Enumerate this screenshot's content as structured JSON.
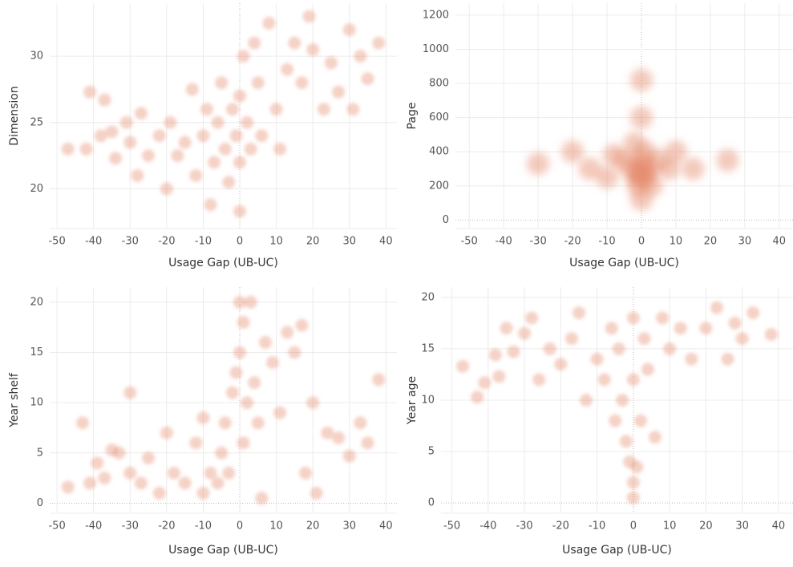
{
  "chart_data": [
    {
      "type": "scatter",
      "x_label": "Usage Gap (UB-UC)",
      "y_label": "Dimension",
      "color": "#e58a6a",
      "xlim": [
        -52,
        43
      ],
      "ylim": [
        17,
        34
      ],
      "xticks": [
        -50,
        -40,
        -30,
        -20,
        -10,
        0,
        10,
        20,
        30,
        40
      ],
      "yticks": [
        20,
        25,
        30
      ],
      "x": [
        -47,
        -42,
        -41,
        -38,
        -37,
        -35,
        -34,
        -31,
        -30,
        -28,
        -27,
        -25,
        -22,
        -20,
        -19,
        -17,
        -15,
        -13,
        -12,
        -10,
        -9,
        -8,
        -7,
        -6,
        -5,
        -4,
        -3,
        -2,
        -1,
        0,
        0,
        0,
        1,
        2,
        3,
        4,
        5,
        6,
        8,
        10,
        11,
        13,
        15,
        17,
        19,
        20,
        23,
        25,
        27,
        30,
        31,
        33,
        35,
        38
      ],
      "y": [
        23,
        23,
        27.3,
        24,
        26.7,
        24.3,
        22.3,
        25,
        23.5,
        21,
        25.7,
        22.5,
        24,
        20,
        25,
        22.5,
        23.5,
        27.5,
        21,
        24,
        26,
        18.8,
        22,
        25,
        28,
        23,
        20.5,
        26,
        24,
        18.3,
        22,
        27,
        30,
        25,
        23,
        31,
        28,
        24,
        32.5,
        26,
        23,
        29,
        31,
        28,
        33,
        30.5,
        26,
        29.5,
        27.3,
        32,
        26,
        30,
        28.3,
        31
      ]
    },
    {
      "type": "scatter",
      "x_label": "Usage Gap (UB-UC)",
      "y_label": "Page",
      "color": "#e58a6a",
      "xlim": [
        -54,
        44
      ],
      "ylim": [
        -50,
        1270
      ],
      "xticks": [
        -50,
        -40,
        -30,
        -20,
        -10,
        0,
        10,
        20,
        30,
        40
      ],
      "yticks": [
        0,
        200,
        400,
        600,
        800,
        1000,
        1200
      ],
      "x": [
        -30,
        -20,
        -15,
        -10,
        -8,
        -5,
        -3,
        -2,
        -1,
        -1,
        0,
        0,
        0,
        0,
        0,
        0,
        1,
        1,
        2,
        3,
        5,
        8,
        10,
        15,
        25
      ],
      "y": [
        330,
        400,
        300,
        250,
        380,
        350,
        300,
        450,
        250,
        200,
        300,
        280,
        350,
        600,
        820,
        120,
        250,
        400,
        300,
        200,
        350,
        300,
        400,
        300,
        350
      ]
    },
    {
      "type": "scatter",
      "x_label": "Usage Gap (UB-UC)",
      "y_label": "Year shelf",
      "color": "#e58a6a",
      "xlim": [
        -52,
        43
      ],
      "ylim": [
        -1,
        21.5
      ],
      "xticks": [
        -50,
        -40,
        -30,
        -20,
        -10,
        0,
        10,
        20,
        30,
        40
      ],
      "yticks": [
        0,
        5,
        10,
        15,
        20
      ],
      "x": [
        -47,
        -43,
        -41,
        -39,
        -37,
        -35,
        -33,
        -30,
        -30,
        -27,
        -25,
        -22,
        -20,
        -18,
        -15,
        -12,
        -10,
        -10,
        -8,
        -6,
        -5,
        -4,
        -3,
        -2,
        -1,
        0,
        0,
        1,
        1,
        2,
        3,
        4,
        5,
        6,
        7,
        9,
        11,
        13,
        15,
        17,
        18,
        20,
        21,
        24,
        27,
        30,
        33,
        35,
        38
      ],
      "y": [
        1.6,
        8,
        2,
        4,
        2.5,
        5.3,
        5,
        11,
        3,
        2,
        4.5,
        1,
        7,
        3,
        2,
        6,
        8.5,
        1,
        3,
        2,
        5,
        8,
        3,
        11,
        13,
        15,
        20,
        18,
        6,
        10,
        20,
        12,
        8,
        0.5,
        16,
        14,
        9,
        17,
        15,
        17.7,
        3,
        10,
        1,
        7,
        6.5,
        4.7,
        8,
        6,
        12.3
      ]
    },
    {
      "type": "scatter",
      "x_label": "Usage Gap (UB-UC)",
      "y_label": "Year age",
      "color": "#e58a6a",
      "xlim": [
        -53,
        44
      ],
      "ylim": [
        -1,
        21
      ],
      "xticks": [
        -50,
        -40,
        -30,
        -20,
        -10,
        0,
        10,
        20,
        30,
        40
      ],
      "yticks": [
        0,
        5,
        10,
        15,
        20
      ],
      "x": [
        -47,
        -43,
        -41,
        -38,
        -37,
        -35,
        -33,
        -30,
        -28,
        -26,
        -23,
        -20,
        -17,
        -15,
        -13,
        -10,
        -8,
        -6,
        -5,
        -4,
        -3,
        -2,
        -1,
        0,
        0,
        0,
        0,
        1,
        2,
        3,
        4,
        6,
        8,
        10,
        13,
        16,
        20,
        23,
        26,
        28,
        30,
        33,
        38
      ],
      "y": [
        13.3,
        10.3,
        11.7,
        14.4,
        12.3,
        17,
        14.7,
        16.5,
        18,
        12,
        15,
        13.5,
        16,
        18.5,
        10,
        14,
        12,
        17,
        8,
        15,
        10,
        6,
        4,
        2,
        0.5,
        12,
        18,
        3.5,
        8,
        16,
        13,
        6.4,
        18,
        15,
        17,
        14,
        17,
        19,
        14,
        17.5,
        16,
        18.5,
        16.4
      ]
    }
  ]
}
